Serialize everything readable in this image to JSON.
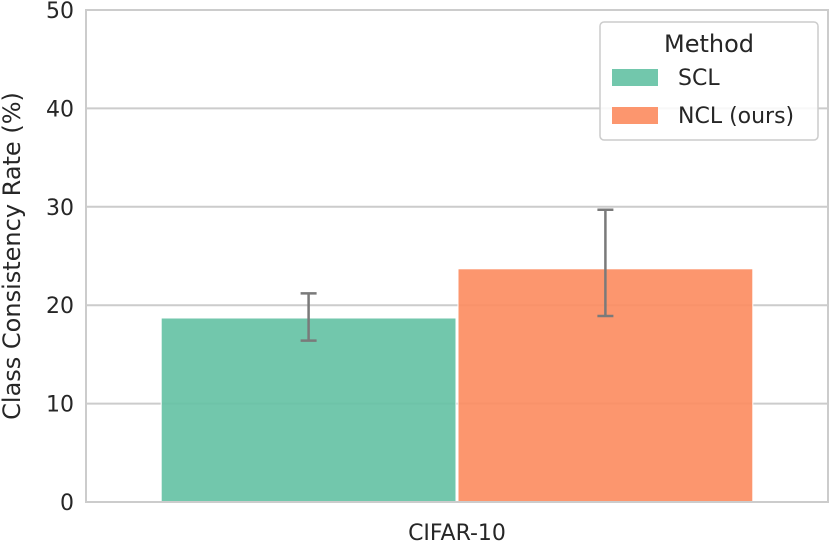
{
  "chart_data": {
    "type": "bar",
    "categories": [
      "CIFAR-10"
    ],
    "ylabel": "Class Consistency Rate (%)",
    "xlabel": "",
    "ylim": [
      0,
      50
    ],
    "yticks": [
      0,
      10,
      20,
      30,
      40,
      50
    ],
    "grid": "horizontal",
    "legend": {
      "title": "Method",
      "placement": "top-right"
    },
    "series": [
      {
        "name": "SCL",
        "color": "#66c2a5",
        "values": [
          18.7
        ],
        "error_low": [
          16.4
        ],
        "error_high": [
          21.2
        ]
      },
      {
        "name": "NCL (ours)",
        "color": "#fc8d62",
        "values": [
          23.7
        ],
        "error_low": [
          18.9
        ],
        "error_high": [
          29.7
        ]
      }
    ]
  }
}
